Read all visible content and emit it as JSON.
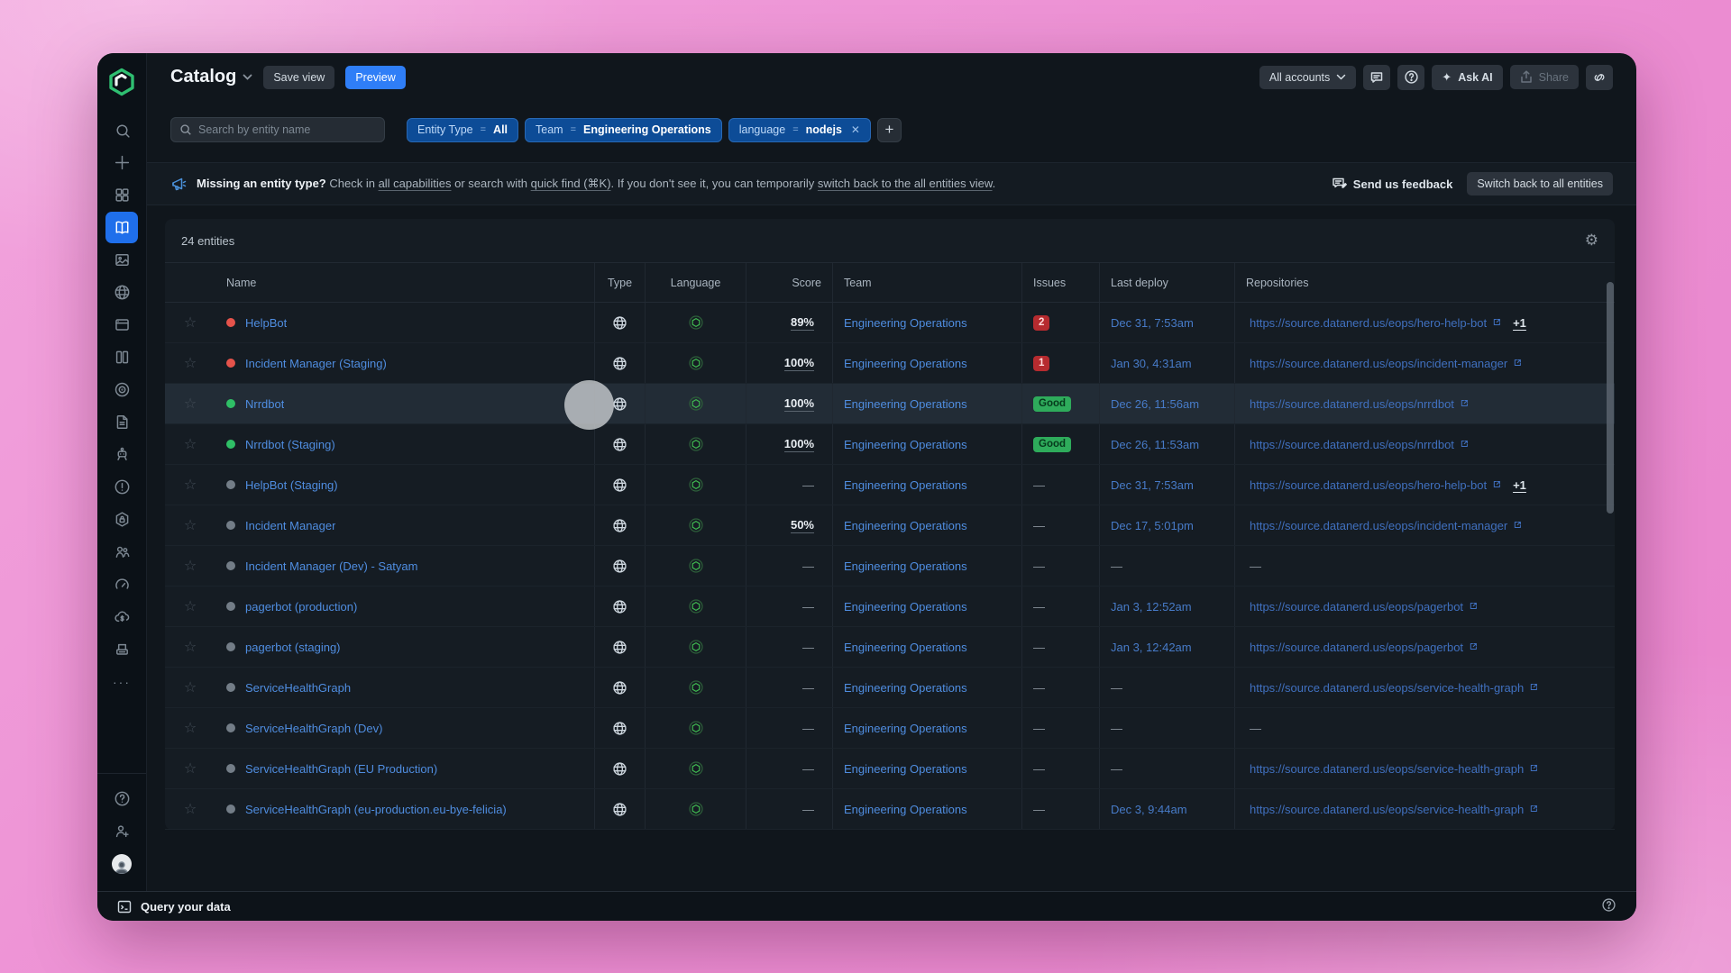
{
  "header": {
    "title": "Catalog",
    "save_view_label": "Save view",
    "preview_label": "Preview",
    "all_accounts_label": "All accounts",
    "ask_ai_label": "Ask AI",
    "share_label": "Share"
  },
  "sidebar": {
    "items": [
      {
        "name": "search"
      },
      {
        "name": "add"
      },
      {
        "name": "apps-grid"
      },
      {
        "name": "catalog-book",
        "active": true
      },
      {
        "name": "scorecards"
      },
      {
        "name": "globe"
      },
      {
        "name": "browser-window"
      },
      {
        "name": "library-columns"
      },
      {
        "name": "target"
      },
      {
        "name": "document"
      },
      {
        "name": "bot"
      },
      {
        "name": "alert-circle"
      },
      {
        "name": "security-shield"
      },
      {
        "name": "users"
      },
      {
        "name": "gauge"
      },
      {
        "name": "cloud-cost"
      },
      {
        "name": "server-stack"
      },
      {
        "name": "more-ellipsis"
      }
    ],
    "bottom_items": [
      {
        "name": "help-circle"
      },
      {
        "name": "invite-user"
      },
      {
        "name": "avatar"
      }
    ]
  },
  "filters": {
    "search_placeholder": "Search by entity name",
    "chips": [
      {
        "field": "Entity Type",
        "op": "=",
        "value": "All",
        "removable": false
      },
      {
        "field": "Team",
        "op": "=",
        "value": "Engineering Operations",
        "removable": false
      },
      {
        "field": "language",
        "op": "=",
        "value": "nodejs",
        "removable": true
      }
    ]
  },
  "banner": {
    "segments": [
      {
        "text": "Missing an entity type? ",
        "bold": true
      },
      {
        "text": "Check in "
      },
      {
        "text": "all capabilities",
        "link": true
      },
      {
        "text": " or search with "
      },
      {
        "text": "quick find (⌘K)",
        "link": true
      },
      {
        "text": ". If you don't see it, you can temporarily "
      },
      {
        "text": "switch back to the all entities view",
        "link": true
      },
      {
        "text": "."
      }
    ],
    "feedback_label": "Send us feedback",
    "switch_label": "Switch back to all entities"
  },
  "table": {
    "count_label": "24 entities",
    "columns": [
      "Name",
      "Type",
      "Language",
      "Score",
      "Team",
      "Issues",
      "Last deploy",
      "Repositories"
    ],
    "type_icon": "globe-service-icon",
    "language_icon": "nodejs-icon",
    "rows": [
      {
        "name": "HelpBot",
        "status": "red",
        "score": "89%",
        "team": "Engineering Operations",
        "issues": {
          "kind": "count",
          "label": "2"
        },
        "deploy": "Dec 31, 7:53am",
        "repo": "https://source.datanerd.us/eops/hero-help-bot",
        "repo_extra": "+1"
      },
      {
        "name": "Incident Manager (Staging)",
        "status": "red",
        "score": "100%",
        "team": "Engineering Operations",
        "issues": {
          "kind": "count",
          "label": "1"
        },
        "deploy": "Jan 30, 4:31am",
        "repo": "https://source.datanerd.us/eops/incident-manager"
      },
      {
        "name": "Nrrdbot",
        "status": "green",
        "score": "100%",
        "team": "Engineering Operations",
        "issues": {
          "kind": "good",
          "label": "Good"
        },
        "deploy": "Dec 26, 11:56am",
        "repo": "https://source.datanerd.us/eops/nrrdbot",
        "highlight": true
      },
      {
        "name": "Nrrdbot (Staging)",
        "status": "green",
        "score": "100%",
        "team": "Engineering Operations",
        "issues": {
          "kind": "good",
          "label": "Good"
        },
        "deploy": "Dec 26, 11:53am",
        "repo": "https://source.datanerd.us/eops/nrrdbot"
      },
      {
        "name": "HelpBot (Staging)",
        "status": "gray",
        "score": "—",
        "team": "Engineering Operations",
        "issues": {
          "kind": "none",
          "label": "—"
        },
        "deploy": "Dec 31, 7:53am",
        "repo": "https://source.datanerd.us/eops/hero-help-bot",
        "repo_extra": "+1"
      },
      {
        "name": "Incident Manager",
        "status": "gray",
        "score": "50%",
        "team": "Engineering Operations",
        "issues": {
          "kind": "none",
          "label": "—"
        },
        "deploy": "Dec 17, 5:01pm",
        "repo": "https://source.datanerd.us/eops/incident-manager"
      },
      {
        "name": "Incident Manager (Dev) - Satyam",
        "status": "gray",
        "score": "—",
        "team": "Engineering Operations",
        "issues": {
          "kind": "none",
          "label": "—"
        },
        "deploy": "—",
        "repo": null
      },
      {
        "name": "pagerbot (production)",
        "status": "gray",
        "score": "—",
        "team": "Engineering Operations",
        "issues": {
          "kind": "none",
          "label": "—"
        },
        "deploy": "Jan 3, 12:52am",
        "repo": "https://source.datanerd.us/eops/pagerbot"
      },
      {
        "name": "pagerbot (staging)",
        "status": "gray",
        "score": "—",
        "team": "Engineering Operations",
        "issues": {
          "kind": "none",
          "label": "—"
        },
        "deploy": "Jan 3, 12:42am",
        "repo": "https://source.datanerd.us/eops/pagerbot"
      },
      {
        "name": "ServiceHealthGraph",
        "status": "gray",
        "score": "—",
        "team": "Engineering Operations",
        "issues": {
          "kind": "none",
          "label": "—"
        },
        "deploy": "—",
        "repo": "https://source.datanerd.us/eops/service-health-graph"
      },
      {
        "name": "ServiceHealthGraph (Dev)",
        "status": "gray",
        "score": "—",
        "team": "Engineering Operations",
        "issues": {
          "kind": "none",
          "label": "—"
        },
        "deploy": "—",
        "repo": null
      },
      {
        "name": "ServiceHealthGraph (EU Production)",
        "status": "gray",
        "score": "—",
        "team": "Engineering Operations",
        "issues": {
          "kind": "none",
          "label": "—"
        },
        "deploy": "—",
        "repo": "https://source.datanerd.us/eops/service-health-graph"
      },
      {
        "name": "ServiceHealthGraph (eu-production.eu-bye-felicia)",
        "status": "gray",
        "score": "—",
        "team": "Engineering Operations",
        "issues": {
          "kind": "none",
          "label": "—"
        },
        "deploy": "Dec 3, 9:44am",
        "repo": "https://source.datanerd.us/eops/service-health-graph"
      }
    ]
  },
  "footer": {
    "query_label": "Query your data"
  },
  "glyphs": {
    "close": "✕",
    "add": "+",
    "star": "☆",
    "gear": "⚙",
    "sparkle": "✦",
    "more": "···"
  },
  "colors": {
    "accent_blue": "#2f7ef7",
    "chip_blue": "#0d4c97",
    "link": "#4f8de0",
    "danger": "#b62b2f",
    "success": "#2eab5b",
    "brand_green": "#2fbf71",
    "page_pink": "#ec8fd3"
  }
}
